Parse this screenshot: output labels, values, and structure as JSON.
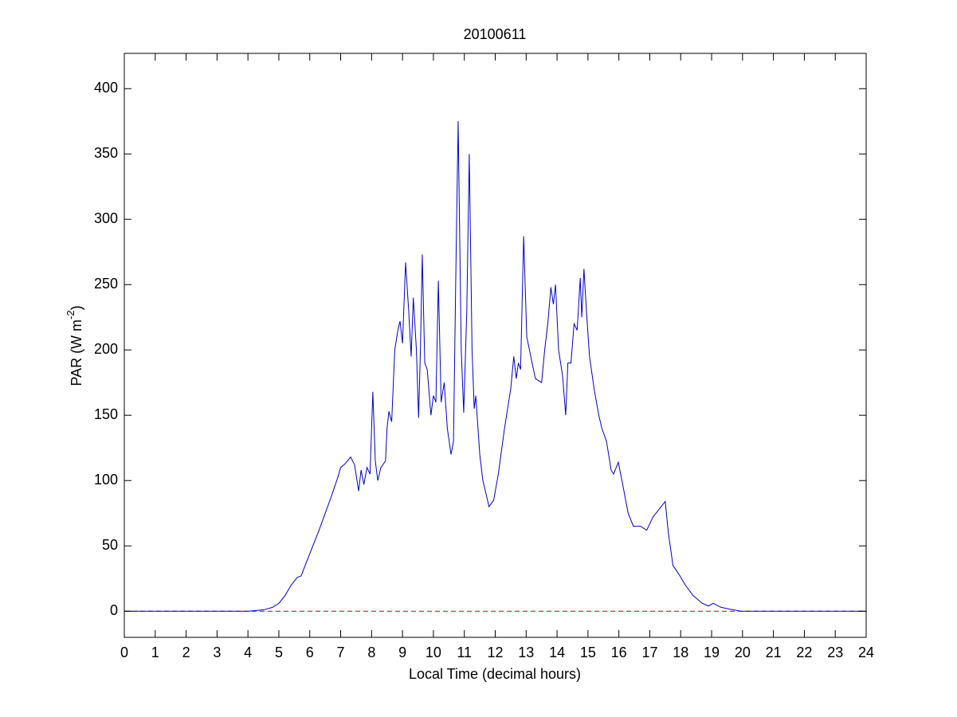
{
  "chart_data": {
    "type": "line",
    "title": "20100611",
    "xlabel": "Local Time (decimal hours)",
    "ylabel": "PAR (W m",
    "ylabel_superscript": "-2",
    "ylabel_end": ")",
    "x": [
      0,
      4,
      4.5,
      4.8,
      5,
      5.2,
      5.4,
      5.6,
      5.72,
      5.9,
      6.1,
      6.3,
      6.5,
      6.7,
      6.9,
      7.0,
      7.15,
      7.32,
      7.45,
      7.58,
      7.66,
      7.75,
      7.85,
      7.95,
      8.04,
      8.12,
      8.2,
      8.3,
      8.45,
      8.5,
      8.56,
      8.65,
      8.75,
      8.85,
      8.92,
      9.0,
      9.1,
      9.2,
      9.28,
      9.35,
      9.45,
      9.52,
      9.58,
      9.64,
      9.72,
      9.8,
      9.92,
      10.0,
      10.08,
      10.16,
      10.25,
      10.35,
      10.45,
      10.57,
      10.65,
      10.72,
      10.8,
      10.9,
      10.98,
      11.08,
      11.16,
      11.25,
      11.32,
      11.37,
      11.5,
      11.6,
      11.8,
      11.95,
      12.1,
      12.3,
      12.5,
      12.6,
      12.68,
      12.75,
      12.82,
      12.92,
      13.02,
      13.15,
      13.3,
      13.5,
      13.6,
      13.7,
      13.8,
      13.88,
      13.95,
      14.05,
      14.18,
      14.28,
      14.35,
      14.45,
      14.55,
      14.65,
      14.75,
      14.8,
      14.87,
      14.95,
      15.05,
      15.2,
      15.35,
      15.45,
      15.6,
      15.75,
      15.83,
      15.98,
      16.1,
      16.3,
      16.47,
      16.7,
      16.9,
      17.1,
      17.3,
      17.5,
      17.6,
      17.75,
      17.95,
      18.15,
      18.4,
      18.7,
      18.9,
      19.05,
      19.3,
      19.6,
      19.95,
      21,
      24
    ],
    "series": [
      {
        "name": "PAR",
        "color": "#0000cc",
        "values": [
          0,
          0,
          1,
          3,
          6,
          12,
          20,
          26,
          27,
          38,
          50,
          62,
          75,
          88,
          102,
          110,
          113,
          118,
          112,
          92,
          108,
          97,
          110,
          105,
          168,
          115,
          100,
          110,
          115,
          140,
          153,
          145,
          200,
          215,
          222,
          205,
          267,
          230,
          195,
          240,
          200,
          148,
          200,
          273,
          190,
          185,
          150,
          165,
          160,
          253,
          160,
          175,
          140,
          120,
          130,
          250,
          375,
          200,
          152,
          230,
          350,
          200,
          155,
          165,
          120,
          100,
          80,
          85,
          105,
          140,
          170,
          195,
          178,
          190,
          185,
          287,
          210,
          195,
          178,
          175,
          200,
          220,
          248,
          235,
          250,
          200,
          180,
          150,
          190,
          190,
          220,
          215,
          255,
          225,
          262,
          230,
          195,
          170,
          150,
          140,
          130,
          108,
          105,
          114,
          100,
          75,
          65,
          65,
          62,
          72,
          78,
          84,
          60,
          35,
          28,
          20,
          12,
          6,
          4,
          6,
          3,
          1.5,
          0,
          0,
          0
        ]
      }
    ],
    "reference_line": {
      "value": 0,
      "color": "#cc0000",
      "style": "dashed"
    },
    "xlim": [
      0,
      24
    ],
    "xticks": [
      0,
      1,
      2,
      3,
      4,
      5,
      6,
      7,
      8,
      9,
      10,
      11,
      12,
      13,
      14,
      15,
      16,
      17,
      18,
      19,
      20,
      21,
      22,
      23,
      24
    ],
    "ylim": [
      -20,
      427
    ],
    "yticks": [
      0,
      50,
      100,
      150,
      200,
      250,
      300,
      350,
      400
    ],
    "grid": false
  }
}
